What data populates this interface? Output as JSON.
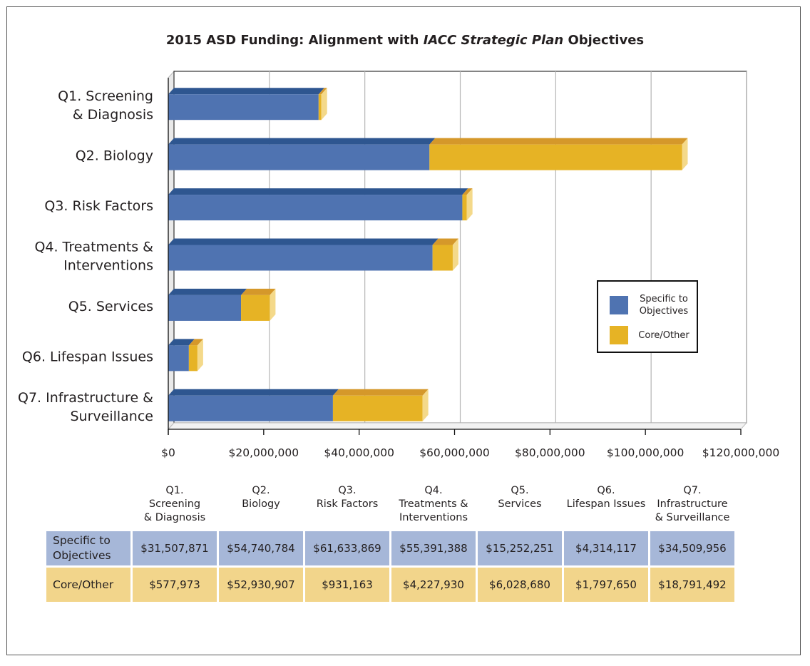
{
  "chart_data": {
    "type": "bar",
    "orientation": "horizontal",
    "stacked": true,
    "title_parts": [
      "2015 ASD Funding: Alignment with ",
      "IACC Strategic Plan",
      " Objectives"
    ],
    "categories": [
      "Q1. Screening\n& Diagnosis",
      "Q2. Biology",
      "Q3. Risk Factors",
      "Q4. Treatments &\nInterventions",
      "Q5. Services",
      "Q6. Lifespan Issues",
      "Q7. Infrastructure &\nSurveillance"
    ],
    "series": [
      {
        "name": "Specific to Objectives",
        "color": "#4f73b1",
        "topColor": "#2e5690",
        "values": [
          31507871,
          54740784,
          61633869,
          55391388,
          15252251,
          4314117,
          34509956
        ]
      },
      {
        "name": "Core/Other",
        "color": "#e6b325",
        "topColor": "#d5982a",
        "values": [
          577973,
          52930907,
          931163,
          4227930,
          6028680,
          1797650,
          18791492
        ]
      }
    ],
    "xlim": [
      0,
      120000000
    ],
    "xticks": [
      0,
      20000000,
      40000000,
      60000000,
      80000000,
      100000000,
      120000000
    ],
    "xtick_labels": [
      "$0",
      "$20,000,000",
      "$40,000,000",
      "$60,000,000",
      "$80,000,000",
      "$100,000,000",
      "$120,000,000"
    ],
    "grid": true,
    "legend_position": "right",
    "legend_labels": [
      "Specific to\nObjectives",
      "Core/Other"
    ]
  },
  "table": {
    "headers": [
      "Q1.\nScreening\n& Diagnosis",
      "Q2.\nBiology",
      "Q3.\nRisk Factors",
      "Q4.\nTreatments &\nInterventions",
      "Q5.\nServices",
      "Q6.\nLifespan Issues",
      "Q7.\nInfrastructure\n& Surveillance"
    ],
    "rows": [
      {
        "label": "Specific to\nObjectives",
        "cells": [
          "$31,507,871",
          "$54,740,784",
          "$61,633,869",
          "$55,391,388",
          "$15,252,251",
          "$4,314,117",
          "$34,509,956"
        ]
      },
      {
        "label": "Core/Other",
        "cells": [
          "$577,973",
          "$52,930,907",
          "$931,163",
          "$4,227,930",
          "$6,028,680",
          "$1,797,650",
          "$18,791,492"
        ]
      }
    ]
  }
}
